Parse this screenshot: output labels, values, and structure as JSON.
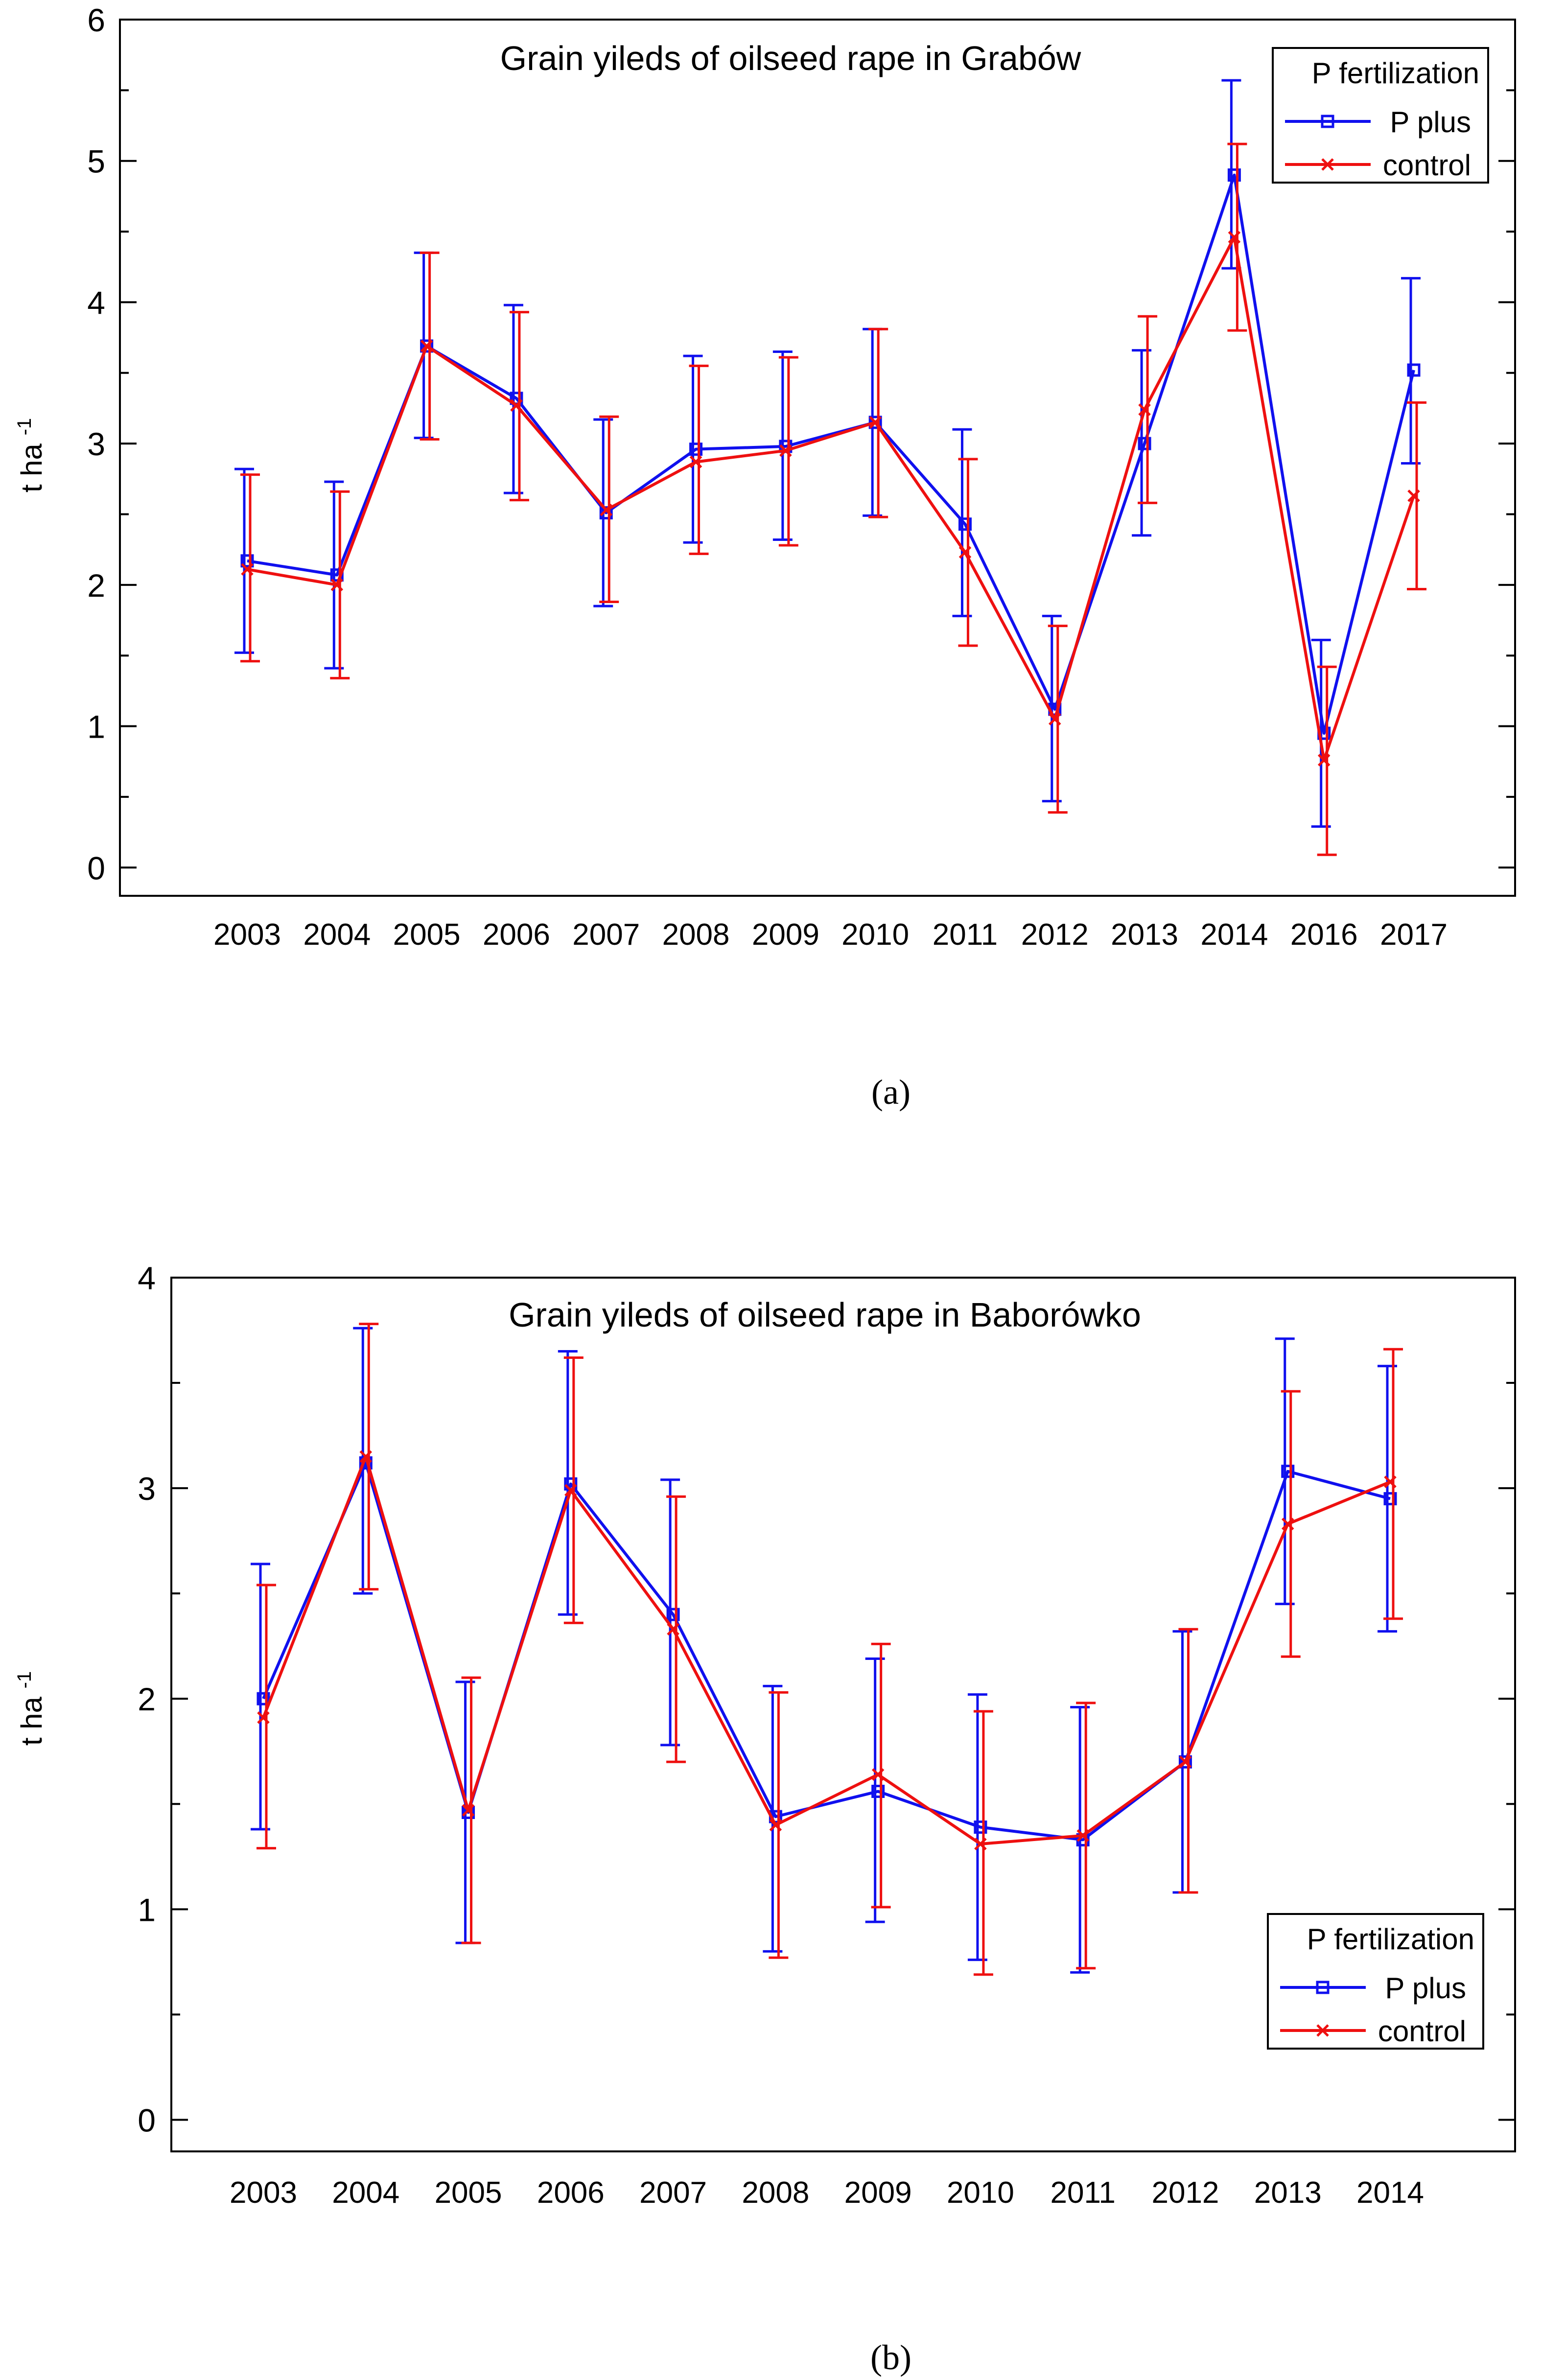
{
  "chart_data": [
    {
      "type": "line",
      "panel_caption": "(a)",
      "title": "Grain yileds of oilseed rape in Grabów",
      "ylabel": "t ha",
      "ylabel_sup": "-1",
      "xlabel": "",
      "ylim": [
        -0.2,
        6
      ],
      "yticks": [
        "0",
        "1",
        "2",
        "3",
        "4",
        "5",
        "6"
      ],
      "ytick_values": [
        0,
        1,
        2,
        3,
        4,
        5,
        6
      ],
      "categories": [
        "2003",
        "2004",
        "2005",
        "2006",
        "2007",
        "2008",
        "2009",
        "2010",
        "2011",
        "2012",
        "2013",
        "2014",
        "2016",
        "2017"
      ],
      "grid": false,
      "legend": {
        "title": "P fertilization",
        "position": "top-right"
      },
      "series": [
        {
          "name": "P plus",
          "color": "#1010ee",
          "marker": "square",
          "values": [
            2.17,
            2.07,
            3.69,
            3.32,
            2.51,
            2.96,
            2.98,
            3.15,
            2.43,
            1.12,
            3.0,
            4.9,
            0.95,
            3.52
          ],
          "lower": [
            1.52,
            1.41,
            3.04,
            2.65,
            1.85,
            2.3,
            2.32,
            2.49,
            1.78,
            0.47,
            2.35,
            4.24,
            0.29,
            2.86
          ],
          "upper": [
            2.82,
            2.73,
            4.35,
            3.98,
            3.17,
            3.62,
            3.65,
            3.81,
            3.1,
            1.78,
            3.66,
            5.57,
            1.61,
            4.17
          ]
        },
        {
          "name": "control",
          "color": "#ee1010",
          "marker": "x",
          "values": [
            2.11,
            2.0,
            3.69,
            3.27,
            2.53,
            2.87,
            2.95,
            3.15,
            2.23,
            1.05,
            3.24,
            4.46,
            0.76,
            2.63
          ],
          "lower": [
            1.46,
            1.34,
            3.03,
            2.6,
            1.88,
            2.22,
            2.28,
            2.48,
            1.57,
            0.39,
            2.58,
            3.8,
            0.09,
            1.97
          ],
          "upper": [
            2.78,
            2.66,
            4.35,
            3.93,
            3.19,
            3.55,
            3.61,
            3.81,
            2.89,
            1.71,
            3.9,
            5.12,
            1.42,
            3.29
          ]
        }
      ]
    },
    {
      "type": "line",
      "panel_caption": "(b)",
      "title": "Grain yileds of oilseed rape in Baborówko",
      "ylabel": "t ha",
      "ylabel_sup": "-1",
      "xlabel": "",
      "ylim": [
        -0.15,
        4
      ],
      "yticks": [
        "0",
        "1",
        "2",
        "3",
        "4"
      ],
      "ytick_values": [
        0,
        1,
        2,
        3,
        4
      ],
      "categories": [
        "2003",
        "2004",
        "2005",
        "2006",
        "2007",
        "2008",
        "2009",
        "2010",
        "2011",
        "2012",
        "2013",
        "2014"
      ],
      "grid": false,
      "legend": {
        "title": "P fertilization",
        "position": "bottom-right"
      },
      "series": [
        {
          "name": "P plus",
          "color": "#1010ee",
          "marker": "square",
          "values": [
            2.0,
            3.12,
            1.46,
            3.02,
            2.4,
            1.44,
            1.56,
            1.39,
            1.33,
            1.7,
            3.08,
            2.95
          ],
          "lower": [
            1.38,
            2.5,
            0.84,
            2.4,
            1.78,
            0.8,
            0.94,
            0.76,
            0.7,
            1.08,
            2.45,
            2.32
          ],
          "upper": [
            2.64,
            3.76,
            2.08,
            3.65,
            3.04,
            2.06,
            2.19,
            2.02,
            1.96,
            2.32,
            3.71,
            3.58
          ]
        },
        {
          "name": "control",
          "color": "#ee1010",
          "marker": "x",
          "values": [
            1.91,
            3.15,
            1.47,
            2.99,
            2.33,
            1.4,
            1.64,
            1.31,
            1.35,
            1.7,
            2.83,
            3.03
          ],
          "lower": [
            1.29,
            2.52,
            0.84,
            2.36,
            1.7,
            0.77,
            1.01,
            0.69,
            0.72,
            1.08,
            2.2,
            2.38
          ],
          "upper": [
            2.54,
            3.78,
            2.1,
            3.62,
            2.96,
            2.03,
            2.26,
            1.94,
            1.98,
            2.33,
            3.46,
            3.66
          ]
        }
      ]
    }
  ]
}
